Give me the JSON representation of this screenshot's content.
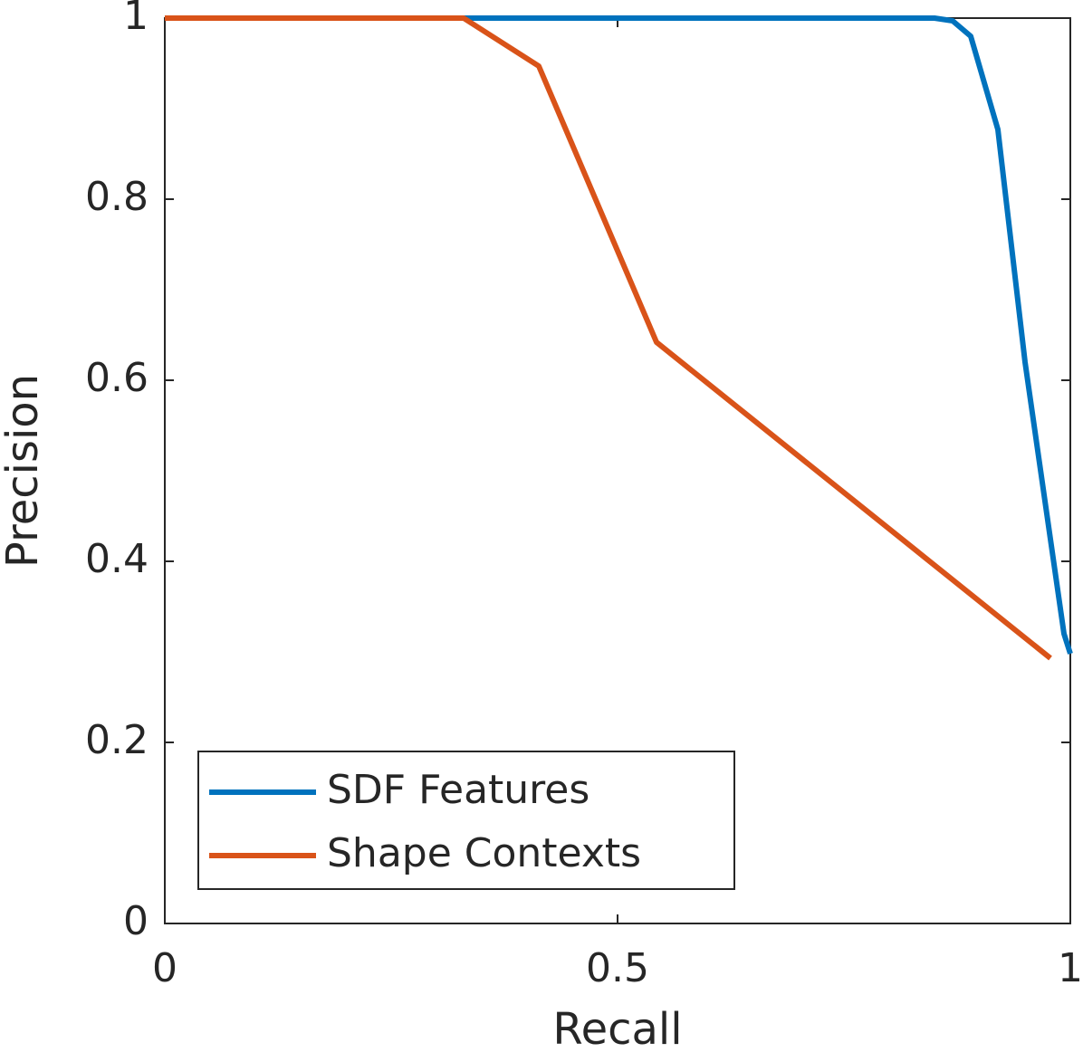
{
  "chart_data": {
    "type": "line",
    "x_label": "Recall",
    "y_label": "Precision",
    "series": [
      {
        "name": "SDF Features",
        "color": "#0072bd",
        "x": [
          0,
          0.85,
          0.87,
          0.89,
          0.92,
          0.95,
          0.993,
          1
        ],
        "values": [
          1,
          1,
          0.997,
          0.98,
          0.877,
          0.62,
          0.32,
          0.298
        ]
      },
      {
        "name": "Shape Contexts",
        "color": "#d95319",
        "x": [
          0,
          0.33,
          0.413,
          0.543,
          0.978
        ],
        "values": [
          1,
          1,
          0.947,
          0.642,
          0.293
        ]
      }
    ],
    "xlim": [
      0,
      1
    ],
    "ylim": [
      0,
      1
    ],
    "xticks": [
      0,
      0.5,
      1
    ],
    "yticks": [
      0,
      0.2,
      0.4,
      0.6,
      0.8,
      1
    ],
    "grid": false,
    "legend": "lower left"
  }
}
